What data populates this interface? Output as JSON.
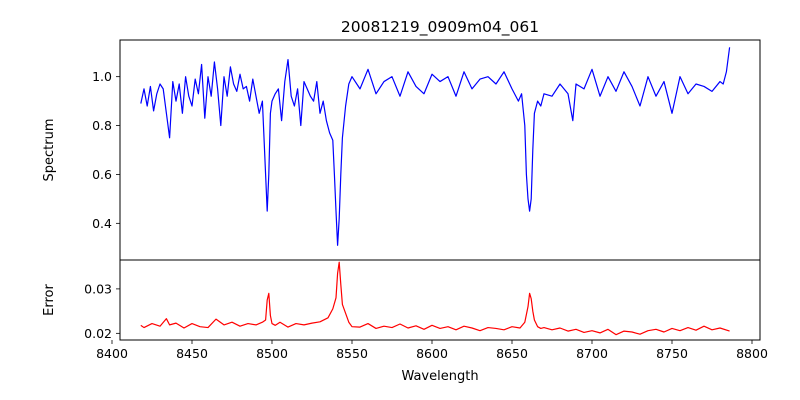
{
  "chart_data": [
    {
      "type": "line",
      "panel": "top",
      "title": "20081219_0909m04_061",
      "xlabel": "",
      "ylabel": "Spectrum",
      "xlim": [
        8405,
        8805
      ],
      "ylim": [
        0.25,
        1.15
      ],
      "yticks": [
        0.4,
        0.6,
        0.8,
        1.0
      ],
      "ytick_labels": [
        "0.4",
        "0.6",
        "0.8",
        "1.0"
      ],
      "grid": false,
      "series": [
        {
          "name": "Spectrum",
          "color": "#0000ff",
          "x": [
            8418,
            8420,
            8422,
            8424,
            8426,
            8428,
            8430,
            8432,
            8434,
            8436,
            8438,
            8440,
            8442,
            8444,
            8446,
            8448,
            8450,
            8452,
            8454,
            8456,
            8458,
            8460,
            8462,
            8464,
            8466,
            8468,
            8470,
            8472,
            8474,
            8476,
            8478,
            8480,
            8482,
            8484,
            8486,
            8488,
            8490,
            8492,
            8494,
            8496,
            8497,
            8498,
            8499,
            8500,
            8502,
            8504,
            8506,
            8508,
            8510,
            8512,
            8514,
            8516,
            8518,
            8520,
            8522,
            8524,
            8526,
            8528,
            8530,
            8532,
            8534,
            8536,
            8538,
            8539,
            8540,
            8541,
            8542,
            8543,
            8544,
            8546,
            8548,
            8550,
            8555,
            8560,
            8565,
            8570,
            8575,
            8580,
            8585,
            8590,
            8595,
            8600,
            8605,
            8610,
            8615,
            8620,
            8625,
            8630,
            8635,
            8640,
            8645,
            8650,
            8654,
            8656,
            8658,
            8659,
            8660,
            8661,
            8662,
            8663,
            8664,
            8666,
            8668,
            8670,
            8675,
            8680,
            8685,
            8688,
            8690,
            8695,
            8700,
            8705,
            8710,
            8715,
            8720,
            8725,
            8730,
            8735,
            8740,
            8745,
            8750,
            8755,
            8760,
            8765,
            8770,
            8775,
            8780,
            8782,
            8784,
            8786
          ],
          "y": [
            0.89,
            0.95,
            0.88,
            0.96,
            0.86,
            0.93,
            0.97,
            0.95,
            0.85,
            0.75,
            0.98,
            0.9,
            0.97,
            0.85,
            1.0,
            0.92,
            0.88,
            0.99,
            0.93,
            1.05,
            0.83,
            1.0,
            0.92,
            1.06,
            0.95,
            0.8,
            1.0,
            0.92,
            1.04,
            0.97,
            0.94,
            1.01,
            0.95,
            0.96,
            0.9,
            0.99,
            0.92,
            0.85,
            0.9,
            0.6,
            0.45,
            0.6,
            0.85,
            0.9,
            0.93,
            0.95,
            0.82,
            0.98,
            1.07,
            0.92,
            0.88,
            0.95,
            0.8,
            0.98,
            0.95,
            0.92,
            0.9,
            0.98,
            0.85,
            0.9,
            0.82,
            0.77,
            0.74,
            0.6,
            0.45,
            0.31,
            0.42,
            0.6,
            0.75,
            0.88,
            0.97,
            1.0,
            0.95,
            1.03,
            0.93,
            0.98,
            1.0,
            0.92,
            1.02,
            0.96,
            0.93,
            1.01,
            0.98,
            1.0,
            0.92,
            1.02,
            0.95,
            0.99,
            1.0,
            0.97,
            1.02,
            0.95,
            0.9,
            0.93,
            0.8,
            0.6,
            0.5,
            0.45,
            0.5,
            0.7,
            0.85,
            0.9,
            0.88,
            0.93,
            0.92,
            0.97,
            0.93,
            0.82,
            0.97,
            0.95,
            1.03,
            0.92,
            1.0,
            0.94,
            1.02,
            0.96,
            0.88,
            1.0,
            0.92,
            0.98,
            0.85,
            1.0,
            0.93,
            0.97,
            0.96,
            0.94,
            0.98,
            0.97,
            1.02,
            1.12
          ]
        }
      ]
    },
    {
      "type": "line",
      "panel": "bottom",
      "title": "",
      "xlabel": "Wavelength",
      "ylabel": "Error",
      "xlim": [
        8405,
        8805
      ],
      "ylim": [
        0.0185,
        0.0365
      ],
      "xticks": [
        8400,
        8450,
        8500,
        8550,
        8600,
        8650,
        8700,
        8750,
        8800
      ],
      "xtick_labels": [
        "8400",
        "8450",
        "8500",
        "8550",
        "8600",
        "8650",
        "8700",
        "8750",
        "8800"
      ],
      "yticks": [
        0.02,
        0.03
      ],
      "ytick_labels": [
        "0.02",
        "0.03"
      ],
      "grid": false,
      "series": [
        {
          "name": "Error",
          "color": "#ff0000",
          "x": [
            8418,
            8420,
            8425,
            8430,
            8434,
            8436,
            8440,
            8445,
            8450,
            8455,
            8460,
            8465,
            8470,
            8475,
            8480,
            8485,
            8490,
            8494,
            8496,
            8497,
            8498,
            8499,
            8500,
            8502,
            8505,
            8510,
            8515,
            8520,
            8525,
            8530,
            8535,
            8538,
            8540,
            8541,
            8542,
            8543,
            8544,
            8546,
            8548,
            8550,
            8555,
            8560,
            8565,
            8570,
            8575,
            8580,
            8585,
            8590,
            8595,
            8600,
            8605,
            8610,
            8615,
            8620,
            8625,
            8630,
            8635,
            8640,
            8645,
            8650,
            8655,
            8658,
            8660,
            8661,
            8662,
            8663,
            8664,
            8666,
            8668,
            8670,
            8675,
            8680,
            8685,
            8690,
            8695,
            8700,
            8705,
            8710,
            8715,
            8720,
            8725,
            8730,
            8735,
            8740,
            8745,
            8750,
            8755,
            8760,
            8765,
            8770,
            8775,
            8780,
            8786
          ],
          "y": [
            0.0218,
            0.0213,
            0.0222,
            0.0216,
            0.0233,
            0.0219,
            0.0223,
            0.0212,
            0.0222,
            0.0215,
            0.0213,
            0.0232,
            0.0219,
            0.0225,
            0.0216,
            0.0222,
            0.0219,
            0.0225,
            0.023,
            0.0275,
            0.029,
            0.024,
            0.0222,
            0.0218,
            0.0225,
            0.0214,
            0.0222,
            0.0219,
            0.0223,
            0.0226,
            0.0235,
            0.0255,
            0.028,
            0.0335,
            0.036,
            0.031,
            0.0265,
            0.0245,
            0.0225,
            0.0215,
            0.0214,
            0.0222,
            0.0211,
            0.0216,
            0.0213,
            0.0221,
            0.0212,
            0.0217,
            0.0209,
            0.0218,
            0.0211,
            0.0215,
            0.0208,
            0.0216,
            0.0212,
            0.0206,
            0.0213,
            0.0211,
            0.0208,
            0.0215,
            0.0212,
            0.0225,
            0.026,
            0.029,
            0.0278,
            0.025,
            0.023,
            0.0215,
            0.0211,
            0.0213,
            0.0208,
            0.0212,
            0.0205,
            0.0209,
            0.0202,
            0.0206,
            0.0201,
            0.0209,
            0.0197,
            0.0205,
            0.0203,
            0.0198,
            0.0206,
            0.0209,
            0.0203,
            0.0211,
            0.0206,
            0.0213,
            0.0207,
            0.0216,
            0.0208,
            0.0212,
            0.0205
          ]
        }
      ]
    }
  ]
}
